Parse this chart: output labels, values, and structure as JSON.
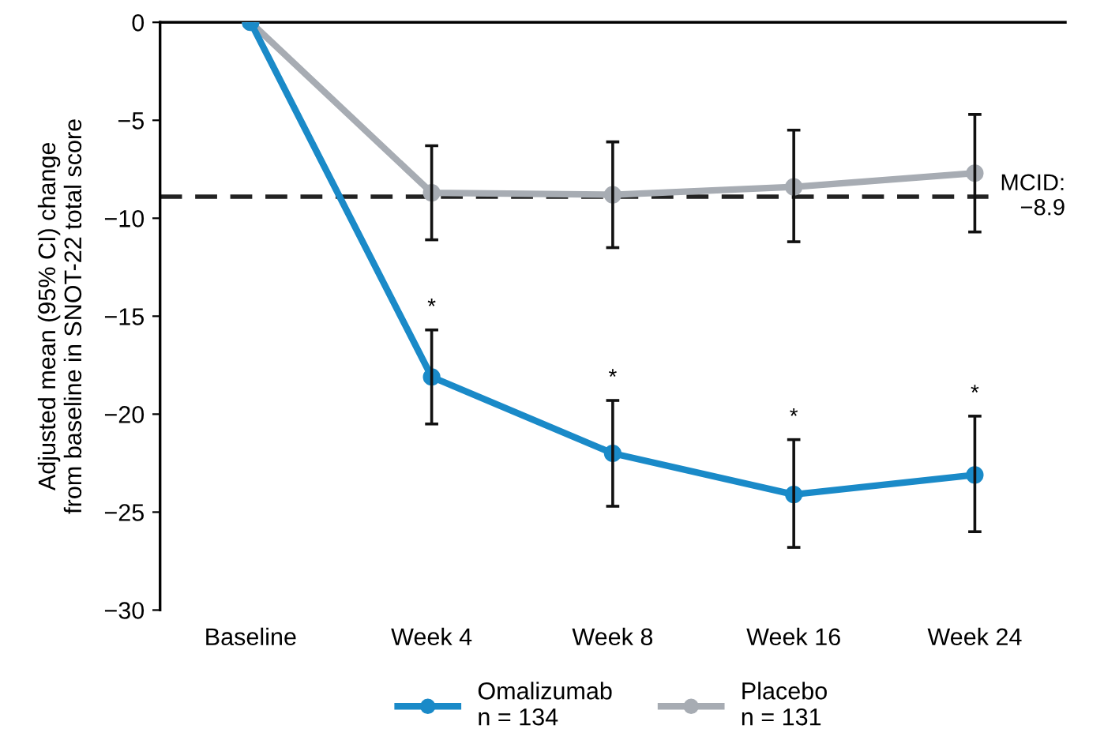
{
  "chart_data": {
    "type": "line",
    "ylabel": "Adjusted mean (95% CI) change\nfrom baseline in SNOT-22 total score",
    "categories": [
      "Baseline",
      "Week 4",
      "Week 8",
      "Week 16",
      "Week 24"
    ],
    "series": [
      {
        "name": "Omalizumab\nn = 134",
        "color": "#1a8ac8",
        "values": [
          0,
          -18.1,
          -22.0,
          -24.1,
          -23.1
        ],
        "errors": [
          null,
          [
            -20.5,
            -15.7
          ],
          [
            -24.7,
            -19.3
          ],
          [
            -26.8,
            -21.3
          ],
          [
            -26.0,
            -20.1
          ]
        ]
      },
      {
        "name": "Placebo\nn = 131",
        "color": "#a7acb3",
        "values": [
          0,
          -8.7,
          -8.8,
          -8.4,
          -7.7
        ],
        "errors": [
          null,
          [
            -11.1,
            -6.3
          ],
          [
            -11.5,
            -6.1
          ],
          [
            -11.2,
            -5.5
          ],
          [
            -10.7,
            -4.7
          ]
        ]
      }
    ],
    "ylim": [
      -30,
      0
    ],
    "yticks": [
      {
        "value": 0,
        "label": "0"
      },
      {
        "value": -5,
        "label": "−5"
      },
      {
        "value": -10,
        "label": "−10"
      },
      {
        "value": -15,
        "label": "−15"
      },
      {
        "value": -20,
        "label": "−20"
      },
      {
        "value": -25,
        "label": "−25"
      },
      {
        "value": -30,
        "label": "−30"
      }
    ],
    "ref_lines": [
      {
        "axis": "y",
        "value": -8.9,
        "label": "MCID:\n−8.9",
        "color": "#222222",
        "line_style": "dashed"
      }
    ],
    "annotations": [
      "*",
      "*",
      "*",
      "*"
    ],
    "legend": "bottom",
    "grid": false,
    "marker": "circle",
    "line_style": "solid"
  }
}
